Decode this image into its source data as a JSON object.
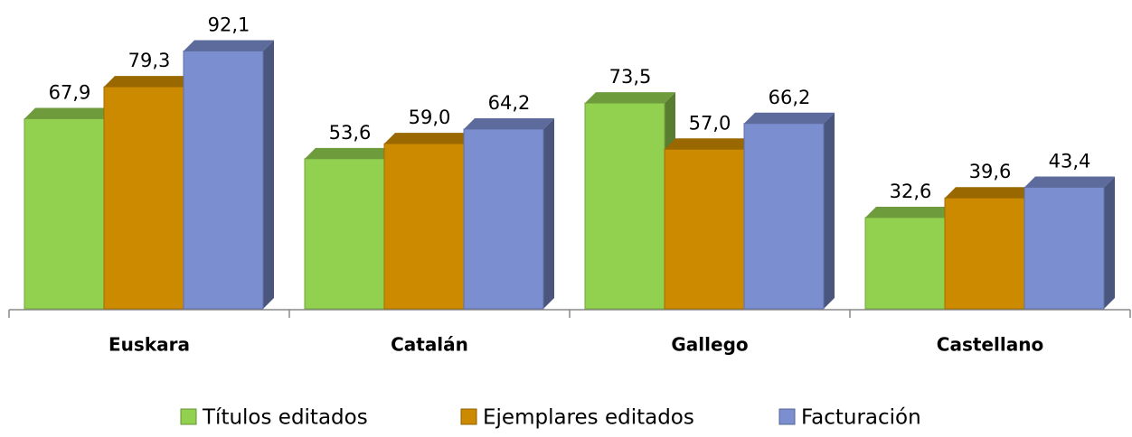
{
  "chart_data": {
    "type": "bar3d",
    "categories": [
      "Euskara",
      "Catalán",
      "Gallego",
      "Castellano"
    ],
    "series": [
      {
        "name": "Títulos editados",
        "color": "#92d050",
        "values": [
          67.9,
          53.6,
          73.5,
          32.6
        ],
        "value_labels": [
          "67,9",
          "53,6",
          "73,5",
          "32,6"
        ]
      },
      {
        "name": "Ejemplares editados",
        "color": "#cc8a00",
        "values": [
          79.3,
          59.0,
          57.0,
          39.6
        ],
        "value_labels": [
          "79,3",
          "59,0",
          "57,0",
          "39,6"
        ]
      },
      {
        "name": "Facturación",
        "color": "#7b8fd0",
        "values": [
          92.1,
          64.2,
          66.2,
          43.4
        ],
        "value_labels": [
          "92,1",
          "64,2",
          "66,2",
          "43,4"
        ]
      }
    ],
    "ylim": [
      0,
      100
    ],
    "legend": "bottom"
  }
}
